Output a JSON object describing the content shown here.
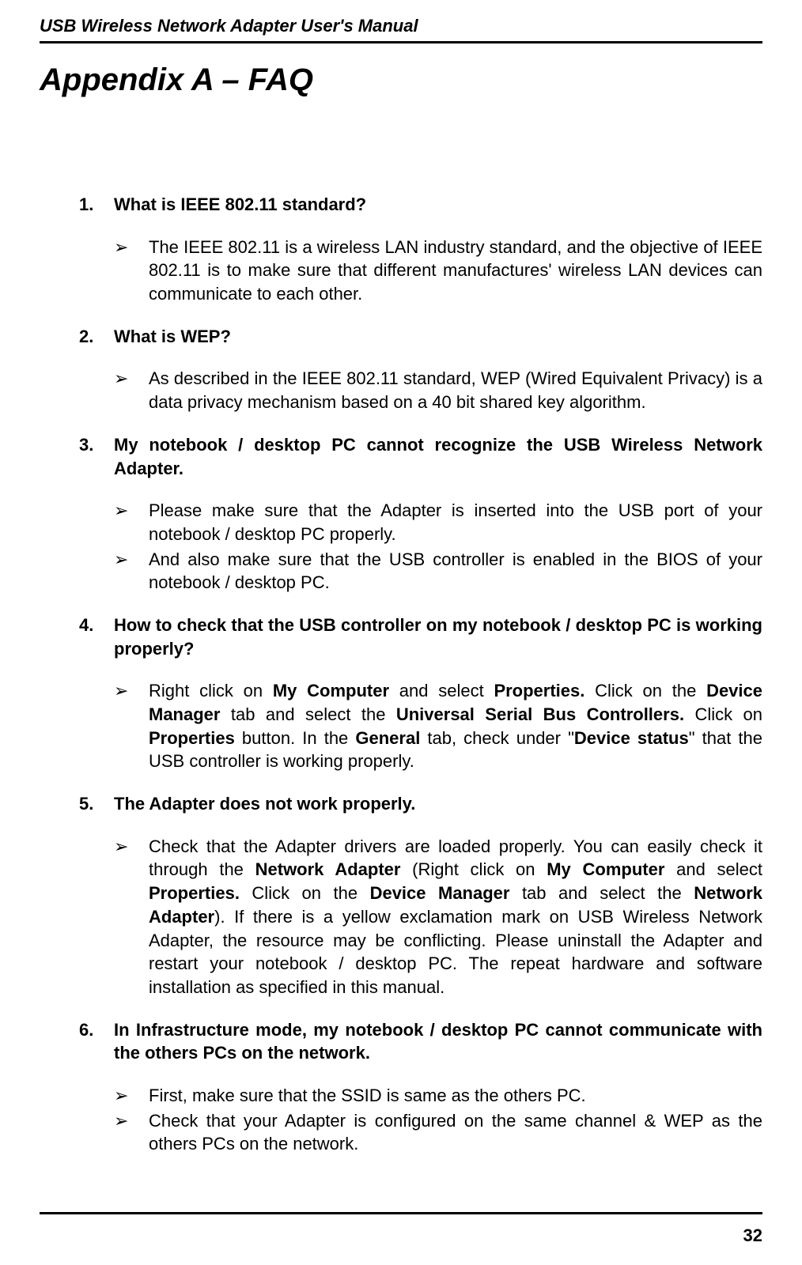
{
  "header_text": "USB Wireless Network Adapter User's Manual",
  "title": "Appendix A – FAQ",
  "page_number": "32",
  "faq": [
    {
      "num": "1.",
      "question": "What is IEEE 802.11 standard?",
      "answers": [
        {
          "type": "plain",
          "text": "The IEEE 802.11 is a wireless LAN industry standard, and the objective of IEEE 802.11 is to make sure that different manufactures' wireless LAN devices can communicate to each other."
        }
      ]
    },
    {
      "num": "2.",
      "question": "What is WEP?",
      "answers": [
        {
          "type": "plain",
          "text": "As described in the IEEE 802.11 standard, WEP (Wired Equivalent Privacy) is a data privacy mechanism based on a 40 bit shared key algorithm."
        }
      ]
    },
    {
      "num": "3.",
      "question": "My notebook / desktop PC cannot recognize the USB Wireless Network Adapter.",
      "answers": [
        {
          "type": "plain",
          "tight": true,
          "text": "Please make sure that the Adapter is inserted into the USB port of your notebook / desktop PC properly."
        },
        {
          "type": "plain",
          "text": "And also make sure that the USB controller is enabled in the BIOS of your notebook / desktop PC."
        }
      ]
    },
    {
      "num": "4.",
      "question": "How to check that the USB controller on my notebook / desktop PC is working properly?",
      "answers": [
        {
          "type": "rich",
          "segments": [
            {
              "t": "Right click on "
            },
            {
              "t": "My Computer",
              "b": true
            },
            {
              "t": " and select "
            },
            {
              "t": "Properties.",
              "b": true
            },
            {
              "t": " Click on the "
            },
            {
              "t": "Device Manager",
              "b": true
            },
            {
              "t": " tab and select the "
            },
            {
              "t": "Universal Serial Bus Controllers.",
              "b": true
            },
            {
              "t": " Click on "
            },
            {
              "t": "Properties",
              "b": true
            },
            {
              "t": " button. In the "
            },
            {
              "t": "General",
              "b": true
            },
            {
              "t": " tab, check under \""
            },
            {
              "t": "Device status",
              "b": true
            },
            {
              "t": "\" that the USB controller is working properly."
            }
          ]
        }
      ]
    },
    {
      "num": "5.",
      "question": "The Adapter does not work properly.",
      "answers": [
        {
          "type": "rich",
          "segments": [
            {
              "t": "Check that the Adapter drivers are loaded properly. You can easily check it through the "
            },
            {
              "t": "Network Adapter",
              "b": true
            },
            {
              "t": " (Right click on "
            },
            {
              "t": "My Computer",
              "b": true
            },
            {
              "t": " and select "
            },
            {
              "t": "Properties.",
              "b": true
            },
            {
              "t": " Click on the "
            },
            {
              "t": "Device Manager",
              "b": true
            },
            {
              "t": " tab and select the "
            },
            {
              "t": "Network Adapter",
              "b": true
            },
            {
              "t": "). If there is a yellow exclamation mark on USB Wireless Network Adapter, the resource may be conflicting. Please uninstall the Adapter and restart your notebook / desktop PC. The repeat hardware and software installation as specified in this manual."
            }
          ]
        }
      ]
    },
    {
      "num": "6.",
      "question": "In Infrastructure mode, my notebook / desktop PC cannot communicate with the others PCs on the network.",
      "answers": [
        {
          "type": "plain",
          "tight": true,
          "text": "First, make sure that the SSID is same as the others PC."
        },
        {
          "type": "plain",
          "text": "Check that your Adapter is configured on the same channel & WEP as the others PCs on the network."
        }
      ]
    }
  ],
  "bullet_glyph": "➢",
  "colors": {
    "text": "#000000",
    "bg": "#ffffff",
    "rule": "#000000"
  },
  "fonts": {
    "body_size_pt": 16,
    "title_size_pt": 30,
    "header_size_pt": 16
  }
}
